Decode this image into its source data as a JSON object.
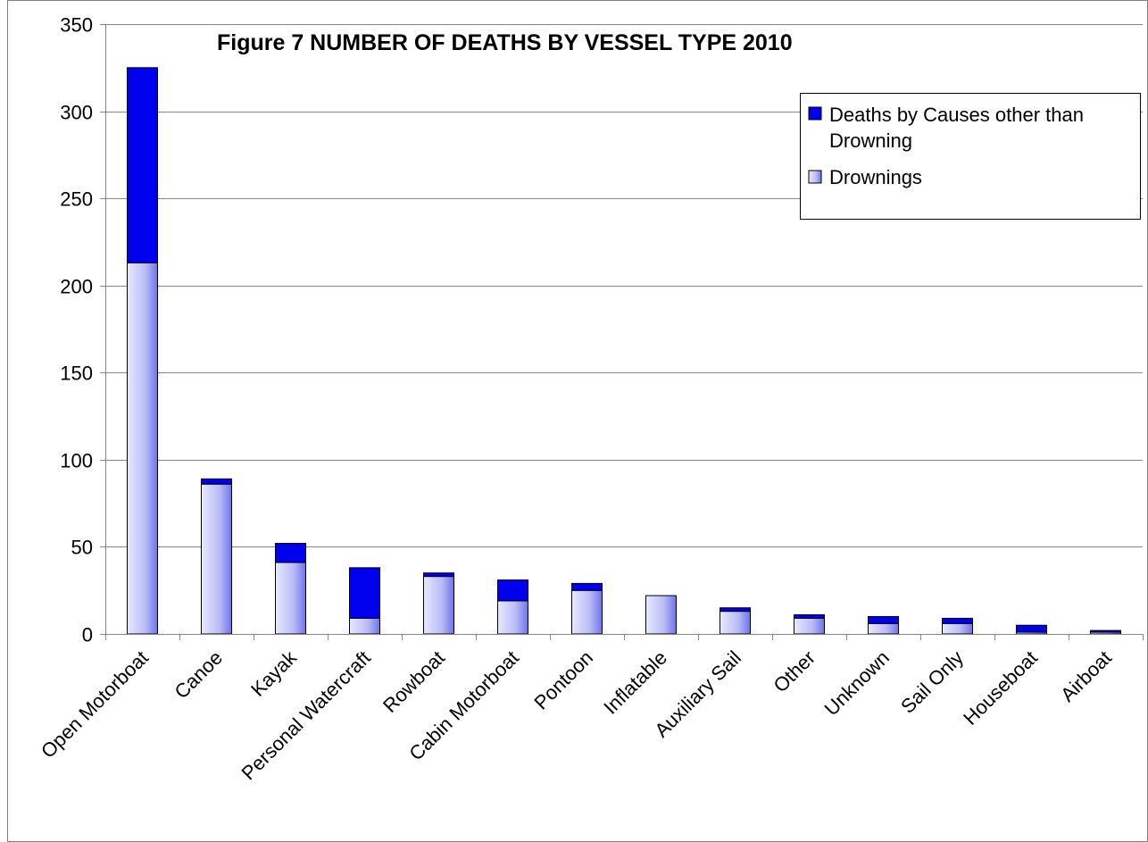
{
  "chart_data": {
    "type": "bar",
    "stacked": true,
    "title": "Figure 7  NUMBER OF DEATHS BY VESSEL TYPE 2010",
    "xlabel": "",
    "ylabel": "",
    "ylim": [
      0,
      350
    ],
    "yticks": [
      0,
      50,
      100,
      150,
      200,
      250,
      300,
      350
    ],
    "grid": true,
    "legend_position": "top-right",
    "categories": [
      "Open Motorboat",
      "Canoe",
      "Kayak",
      "Personal Watercraft",
      "Rowboat",
      "Cabin Motorboat",
      "Pontoon",
      "Inflatable",
      "Auxiliary Sail",
      "Other",
      "Unknown",
      "Sail Only",
      "Houseboat",
      "Airboat"
    ],
    "series": [
      {
        "name": "Drownings",
        "color": "#b8baf8",
        "values": [
          213,
          86,
          41,
          9,
          33,
          19,
          25,
          22,
          13,
          9,
          6,
          6,
          1,
          1
        ]
      },
      {
        "name": "Deaths by Causes other than Drowning",
        "color": "#0000ee",
        "values": [
          112,
          3,
          11,
          29,
          2,
          12,
          4,
          0,
          2,
          2,
          4,
          3,
          4,
          1
        ]
      }
    ],
    "legend": {
      "other_line1": "Deaths by Causes other than",
      "other_line2": "Drowning",
      "drown_label": "Drownings"
    }
  }
}
